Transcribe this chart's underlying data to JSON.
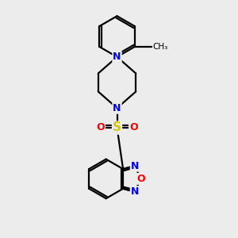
{
  "bg_color": "#ececec",
  "bond_color": "#000000",
  "bond_width": 1.6,
  "atom_colors": {
    "N": "#0000ff",
    "O": "#ff0000",
    "S": "#cccc00",
    "C": "#000000"
  },
  "font_size_atom": 9,
  "fig_width": 3.0,
  "fig_height": 3.0,
  "dpi": 100
}
